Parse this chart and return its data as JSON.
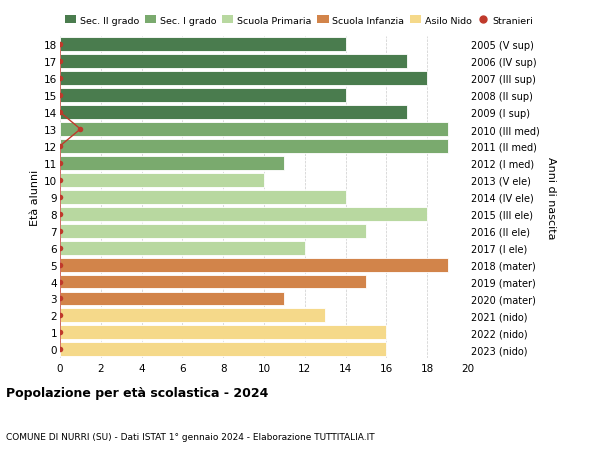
{
  "ages": [
    18,
    17,
    16,
    15,
    14,
    13,
    12,
    11,
    10,
    9,
    8,
    7,
    6,
    5,
    4,
    3,
    2,
    1,
    0
  ],
  "labels_right": [
    "2005 (V sup)",
    "2006 (IV sup)",
    "2007 (III sup)",
    "2008 (II sup)",
    "2009 (I sup)",
    "2010 (III med)",
    "2011 (II med)",
    "2012 (I med)",
    "2013 (V ele)",
    "2014 (IV ele)",
    "2015 (III ele)",
    "2016 (II ele)",
    "2017 (I ele)",
    "2018 (mater)",
    "2019 (mater)",
    "2020 (mater)",
    "2021 (nido)",
    "2022 (nido)",
    "2023 (nido)"
  ],
  "values": [
    14,
    17,
    18,
    14,
    17,
    19,
    19,
    11,
    10,
    14,
    18,
    15,
    12,
    19,
    15,
    11,
    13,
    16,
    16
  ],
  "stranieri": [
    0,
    0,
    0,
    0,
    0,
    1,
    0,
    0,
    0,
    0,
    0,
    0,
    0,
    0,
    0,
    0,
    0,
    0,
    0
  ],
  "colors": [
    "#4a7c4e",
    "#4a7c4e",
    "#4a7c4e",
    "#4a7c4e",
    "#4a7c4e",
    "#7aaa6e",
    "#7aaa6e",
    "#7aaa6e",
    "#b8d8a0",
    "#b8d8a0",
    "#b8d8a0",
    "#b8d8a0",
    "#b8d8a0",
    "#d2844a",
    "#d2844a",
    "#d2844a",
    "#f5d98a",
    "#f5d98a",
    "#f5d98a"
  ],
  "legend_labels": [
    "Sec. II grado",
    "Sec. I grado",
    "Scuola Primaria",
    "Scuola Infanzia",
    "Asilo Nido",
    "Stranieri"
  ],
  "legend_colors": [
    "#4a7c4e",
    "#7aaa6e",
    "#b8d8a0",
    "#d2844a",
    "#f5d98a",
    "#c0392b"
  ],
  "title": "Popolazione per età scolastica - 2024",
  "subtitle": "COMUNE DI NURRI (SU) - Dati ISTAT 1° gennaio 2024 - Elaborazione TUTTITALIA.IT",
  "ylabel": "Età alunni",
  "ylabel_right": "Anni di nascita",
  "xlim": [
    0,
    20
  ],
  "xticks": [
    0,
    2,
    4,
    6,
    8,
    10,
    12,
    14,
    16,
    18,
    20
  ],
  "bar_height": 0.82,
  "stranieri_color": "#c0392b",
  "background_color": "#ffffff",
  "grid_color": "#cccccc"
}
